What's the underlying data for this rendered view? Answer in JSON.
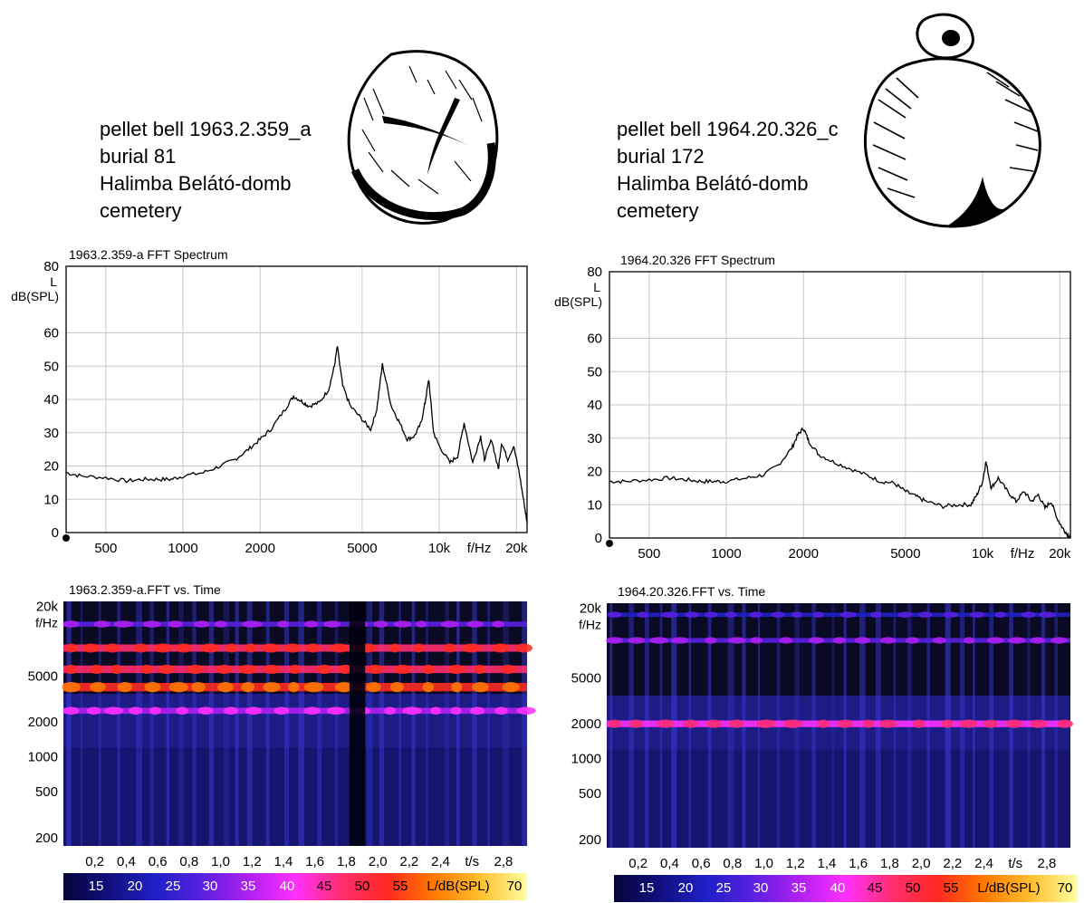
{
  "colors": {
    "background": "#ffffff",
    "curve": "#000000",
    "grid": "#c8c8c8",
    "spectrogram_bg": "#0a0a24",
    "band_low": "#2b2bd4",
    "band_mid": "#ff33ff",
    "band_high": "#ffcc33",
    "colorbar_stops": [
      "#05053a",
      "#101080",
      "#2020c8",
      "#5a20e0",
      "#b020f0",
      "#ff30ff",
      "#ff2d6e",
      "#ff2a20",
      "#ff7a00",
      "#ffc030",
      "#ffffa0"
    ]
  },
  "left": {
    "caption": [
      "pellet bell 1963.2.359_a",
      "burial 81",
      "Halimba Belátó-domb",
      "cemetery"
    ],
    "sketch_icon": "pellet-bell-top-view-sketch",
    "fft": {
      "title": "1963.2.359-a FFT Spectrum",
      "ylabel_lines": [
        "L",
        "dB(SPL)"
      ],
      "yticks": [
        "80",
        "60",
        "50",
        "40",
        "30",
        "20",
        "10",
        "0"
      ],
      "xticks": [
        "500",
        "1000",
        "2000",
        "5000",
        "10k",
        "20k"
      ],
      "xunit": "f/Hz"
    },
    "spectrogram": {
      "title": "1963.2.359-a.FFT vs. Time",
      "yticks": [
        "20k",
        "5000",
        "2000",
        "1000",
        "500",
        "200"
      ],
      "yunit": "f/Hz",
      "xticks": [
        "0,2",
        "0,4",
        "0,6",
        "0,8",
        "1,0",
        "1,2",
        "1,4",
        "1,6",
        "1,8",
        "2,0",
        "2,2",
        "2,4",
        "2,8"
      ],
      "xunit": "t/s"
    },
    "colorbar": {
      "ticks": [
        "15",
        "20",
        "25",
        "30",
        "35",
        "40",
        "45",
        "50",
        "55",
        "70"
      ],
      "unit": "L/dB(SPL)"
    }
  },
  "right": {
    "caption": [
      "pellet bell 1964.20.326_c",
      "burial 172",
      "Halimba Belátó-domb",
      "cemetery"
    ],
    "sketch_icon": "pellet-bell-side-view-sketch",
    "fft": {
      "title": "1964.20.326 FFT Spectrum",
      "ylabel_lines": [
        "L",
        "dB(SPL)"
      ],
      "yticks": [
        "80",
        "60",
        "50",
        "40",
        "30",
        "20",
        "10",
        "0"
      ],
      "xticks": [
        "500",
        "1000",
        "2000",
        "5000",
        "10k",
        "20k"
      ],
      "xunit": "f/Hz"
    },
    "spectrogram": {
      "title": "1964.20.326.FFT vs. Time",
      "yticks": [
        "20k",
        "5000",
        "2000",
        "1000",
        "500",
        "200"
      ],
      "yunit": "f/Hz",
      "xticks": [
        "0,2",
        "0,4",
        "0,6",
        "0,8",
        "1,0",
        "1,2",
        "1,4",
        "1,6",
        "1,8",
        "2,0",
        "2,2",
        "2,4",
        "2,8"
      ],
      "xunit": "t/s"
    },
    "colorbar": {
      "ticks": [
        "15",
        "20",
        "25",
        "30",
        "35",
        "40",
        "45",
        "50",
        "55",
        "70"
      ],
      "unit": "L/dB(SPL)"
    }
  },
  "chart_data": [
    {
      "type": "line",
      "title": "1963.2.359-a FFT Spectrum",
      "xlabel": "f/Hz",
      "ylabel": "L dB(SPL)",
      "xscale": "log",
      "xlim": [
        350,
        22000
      ],
      "ylim": [
        0,
        80
      ],
      "grid": true,
      "series": [
        {
          "x": [
            350,
            400,
            500,
            600,
            700,
            800,
            900,
            1000,
            1200,
            1400,
            1600,
            1800,
            2000,
            2200,
            2500,
            2700,
            2900,
            3100,
            3400,
            3700,
            3900,
            4000,
            4200,
            4500,
            5000,
            5400,
            5700,
            6000,
            6500,
            7000,
            7500,
            8000,
            8500,
            8800,
            9100,
            9500,
            10000,
            11000,
            11800,
            12500,
            13500,
            14500,
            15000,
            16000,
            17000,
            17500,
            18500,
            19500,
            20500,
            21500,
            22000
          ],
          "y": [
            18,
            17,
            16.5,
            15.5,
            16,
            16,
            16,
            17,
            18,
            20,
            22,
            25,
            28,
            31,
            37,
            41,
            39.5,
            38,
            39,
            43,
            50,
            56,
            44,
            38,
            34,
            31,
            37,
            50.5,
            38,
            33,
            28,
            29,
            33,
            39,
            46,
            30,
            26,
            21,
            23,
            33,
            21,
            29,
            22,
            28,
            19,
            27,
            22,
            26,
            18,
            8,
            3
          ]
        }
      ]
    },
    {
      "type": "line",
      "title": "1964.20.326 FFT Spectrum",
      "xlabel": "f/Hz",
      "ylabel": "L dB(SPL)",
      "xscale": "log",
      "xlim": [
        350,
        22000
      ],
      "ylim": [
        0,
        80
      ],
      "grid": true,
      "series": [
        {
          "x": [
            350,
            400,
            500,
            600,
            700,
            800,
            900,
            1000,
            1200,
            1400,
            1600,
            1800,
            1900,
            2000,
            2100,
            2300,
            2600,
            3000,
            3500,
            4000,
            4500,
            5000,
            5500,
            6000,
            7000,
            8000,
            9000,
            9500,
            10000,
            10300,
            10800,
            11500,
            12500,
            13500,
            14500,
            15500,
            16500,
            17500,
            18500,
            19500,
            20500,
            21500,
            22000
          ],
          "y": [
            17,
            17,
            17.5,
            18,
            17.5,
            17,
            17,
            17,
            18,
            19,
            22,
            27,
            31,
            33,
            29,
            25,
            23,
            21,
            19,
            17,
            16.5,
            14,
            12.5,
            11,
            9.5,
            10,
            10,
            13,
            17,
            23,
            15,
            18,
            14,
            11,
            14,
            11,
            13,
            9,
            11,
            6,
            3,
            1,
            0
          ]
        }
      ]
    },
    {
      "type": "heatmap",
      "title": "1963.2.359-a.FFT vs. Time",
      "xlabel": "t/s",
      "ylabel": "f/Hz",
      "zlabel": "L/dB(SPL)",
      "xlim": [
        0,
        2.95
      ],
      "ylim": [
        170,
        22000
      ],
      "zlim": [
        10,
        70
      ],
      "bands": [
        {
          "freq": 4000,
          "level": 52
        },
        {
          "freq": 5700,
          "level": 46
        },
        {
          "freq": 8700,
          "level": 44
        },
        {
          "freq": 2500,
          "level": 36
        },
        {
          "freq": 14000,
          "level": 30
        }
      ],
      "quiet_intervals": [
        [
          1.82,
          1.92
        ]
      ]
    },
    {
      "type": "heatmap",
      "title": "1964.20.326.FFT vs. Time",
      "xlabel": "t/s",
      "ylabel": "f/Hz",
      "zlabel": "L/dB(SPL)",
      "xlim": [
        0,
        2.95
      ],
      "ylim": [
        170,
        22000
      ],
      "zlim": [
        10,
        70
      ],
      "bands": [
        {
          "freq": 2000,
          "level": 40
        },
        {
          "freq": 10500,
          "level": 28
        },
        {
          "freq": 17500,
          "level": 24
        }
      ],
      "quiet_intervals": []
    }
  ]
}
